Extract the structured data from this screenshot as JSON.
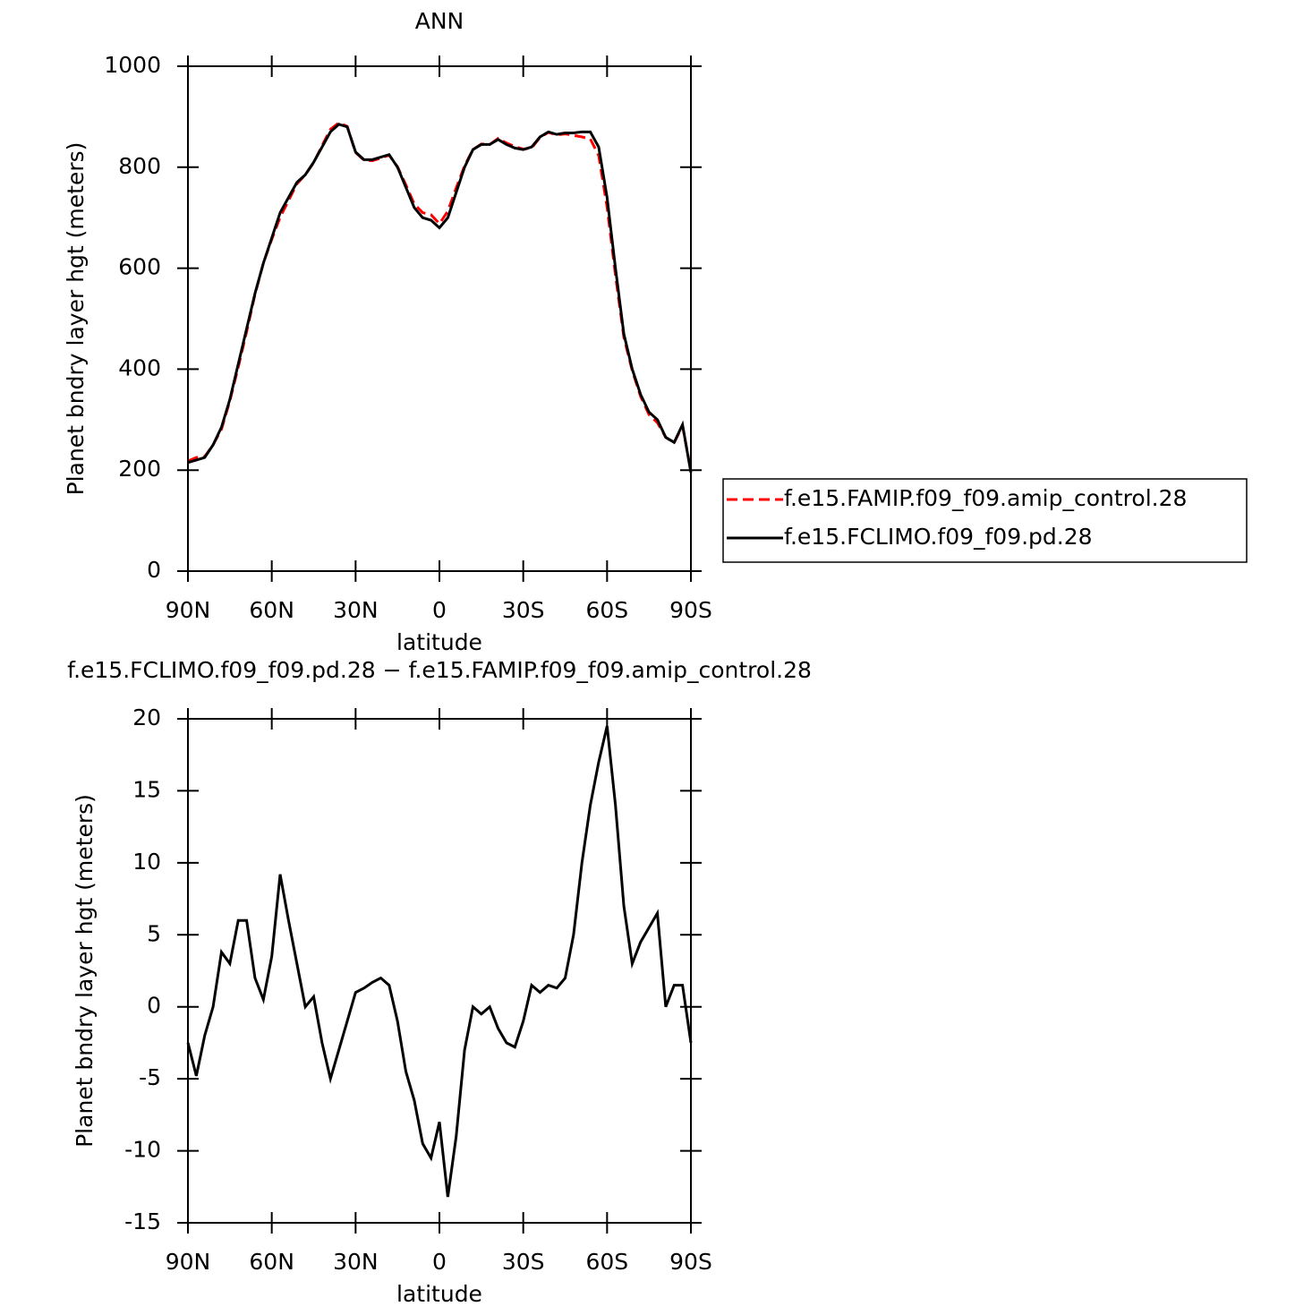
{
  "chart_data": [
    {
      "type": "line",
      "title": "ANN",
      "xlabel": "latitude",
      "ylabel": "Planet bndry layer hgt (meters)",
      "x": [
        90,
        87,
        84,
        81,
        78,
        75,
        72,
        69,
        66,
        63,
        60,
        57,
        54,
        51,
        48,
        45,
        42,
        39,
        36,
        33,
        30,
        27,
        24,
        21,
        18,
        15,
        12,
        9,
        6,
        3,
        0,
        -3,
        -6,
        -9,
        -12,
        -15,
        -18,
        -21,
        -24,
        -27,
        -30,
        -33,
        -36,
        -39,
        -42,
        -45,
        -48,
        -51,
        -54,
        -57,
        -60,
        -63,
        -66,
        -69,
        -72,
        -75,
        -78,
        -81,
        -84,
        -87,
        -90
      ],
      "series": [
        {
          "name": "f.e15.FAMIP.f09_f09.amip_control.28",
          "color": "#ff0000",
          "line_style": "dashed",
          "values": [
            218,
            225,
            227,
            250,
            281,
            337,
            404,
            474,
            548,
            610,
            657,
            701,
            734,
            767,
            785,
            809,
            843,
            875,
            888,
            881,
            829,
            814,
            813,
            818,
            824,
            801,
            765,
            727,
            710,
            706,
            688,
            713,
            759,
            803,
            835,
            846,
            845,
            857,
            848,
            841,
            836,
            838,
            859,
            869,
            864,
            866,
            863,
            860,
            856,
            823,
            721,
            586,
            463,
            397,
            346,
            310,
            294,
            265,
            254,
            288,
            198
          ]
        },
        {
          "name": "f.e15.FCLIMO.f09_f09.pd.28",
          "color": "#000000",
          "line_style": "solid",
          "values": [
            215,
            220,
            225,
            250,
            285,
            340,
            410,
            480,
            550,
            610,
            660,
            710,
            740,
            770,
            785,
            810,
            840,
            870,
            885,
            880,
            830,
            815,
            815,
            820,
            825,
            800,
            760,
            720,
            700,
            695,
            680,
            700,
            750,
            800,
            835,
            845,
            845,
            855,
            845,
            838,
            835,
            840,
            860,
            870,
            865,
            868,
            868,
            870,
            870,
            840,
            740,
            600,
            470,
            400,
            350,
            315,
            300,
            265,
            255,
            290,
            195
          ]
        }
      ],
      "xlim": [
        90,
        -90
      ],
      "xticks": [
        {
          "value": 90,
          "label": "90N"
        },
        {
          "value": 60,
          "label": "60N"
        },
        {
          "value": 30,
          "label": "30N"
        },
        0,
        {
          "value": -30,
          "label": "30S"
        },
        {
          "value": -60,
          "label": "60S"
        },
        {
          "value": -90,
          "label": "90S"
        }
      ],
      "ylim": [
        0,
        1000
      ],
      "yticks": [
        0,
        200,
        400,
        600,
        800,
        1000
      ],
      "legend": "right"
    },
    {
      "type": "line",
      "title": "f.e15.FCLIMO.f09_f09.pd.28 − f.e15.FAMIP.f09_f09.amip_control.28",
      "xlabel": "latitude",
      "ylabel": "Planet bndry layer hgt (meters)",
      "x": [
        90,
        87,
        84,
        81,
        78,
        75,
        72,
        69,
        66,
        63,
        60,
        57,
        54,
        51,
        48,
        45,
        42,
        39,
        36,
        33,
        30,
        27,
        24,
        21,
        18,
        15,
        12,
        9,
        6,
        3,
        0,
        -3,
        -6,
        -9,
        -12,
        -15,
        -18,
        -21,
        -24,
        -27,
        -30,
        -33,
        -36,
        -39,
        -42,
        -45,
        -48,
        -51,
        -54,
        -57,
        -60,
        -63,
        -66,
        -69,
        -72,
        -75,
        -78,
        -81,
        -84,
        -87,
        -90
      ],
      "series": [
        {
          "color": "#000000",
          "line_style": "solid",
          "values": [
            -2.5,
            -4.8,
            -2,
            0,
            3.8,
            3,
            6,
            6,
            2,
            0.5,
            3.5,
            9.2,
            6,
            3,
            0,
            0.7,
            -2.5,
            -5,
            -3,
            -1,
            1,
            1.3,
            1.7,
            2,
            1.5,
            -1,
            -4.5,
            -6.5,
            -9.5,
            -10.5,
            -8,
            -13.2,
            -9,
            -3,
            0,
            -0.5,
            0,
            -1.5,
            -2.5,
            -2.8,
            -1,
            1.5,
            1,
            1.5,
            1.3,
            2,
            5,
            10,
            14,
            17,
            19.5,
            14,
            7,
            3,
            4.5,
            5.5,
            6.5,
            0,
            1.5,
            1.5,
            -2.5
          ]
        }
      ],
      "xlim": [
        90,
        -90
      ],
      "xticks": [
        {
          "value": 90,
          "label": "90N"
        },
        {
          "value": 60,
          "label": "60N"
        },
        {
          "value": 30,
          "label": "30N"
        },
        0,
        {
          "value": -30,
          "label": "30S"
        },
        {
          "value": -60,
          "label": "60S"
        },
        {
          "value": -90,
          "label": "90S"
        }
      ],
      "ylim": [
        -15,
        20
      ],
      "yticks": [
        -15,
        -10,
        -5,
        0,
        5,
        10,
        15,
        20
      ]
    }
  ]
}
